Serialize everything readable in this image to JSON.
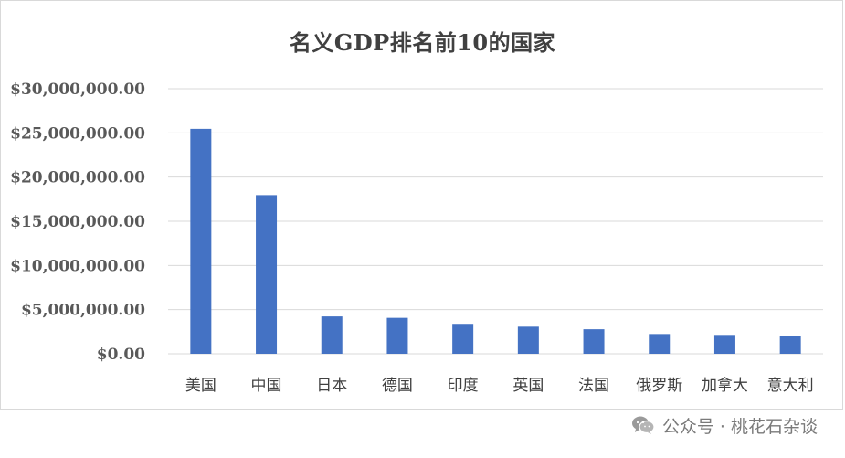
{
  "chart_data": {
    "type": "bar",
    "title": "名义GDP排名前10的国家",
    "xlabel": "",
    "ylabel": "",
    "categories": [
      "美国",
      "中国",
      "日本",
      "德国",
      "印度",
      "英国",
      "法国",
      "俄罗斯",
      "加拿大",
      "意大利"
    ],
    "values": [
      25460000,
      17960000,
      4230000,
      4070000,
      3390000,
      3070000,
      2780000,
      2240000,
      2140000,
      2010000
    ],
    "ylim": [
      0,
      30000000
    ],
    "yticks": [
      "$0.00",
      "$5,000,000.00",
      "$10,000,000.00",
      "$15,000,000.00",
      "$20,000,000.00",
      "$25,000,000.00",
      "$30,000,000.00"
    ],
    "grid": true,
    "legend": "none",
    "bar_color": "#4472c4",
    "grid_color": "#d9d9d9"
  },
  "watermark": {
    "icon": "wechat-icon",
    "text": "公众号 · 桃花石杂谈"
  }
}
